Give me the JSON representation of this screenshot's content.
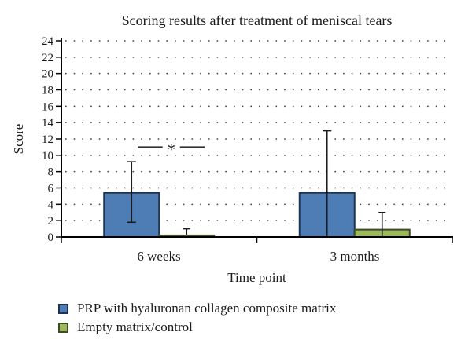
{
  "chart_data": {
    "type": "bar",
    "title": "Scoring results after treatment of meniscal tears",
    "xlabel": "Time point",
    "ylabel": "Score",
    "categories": [
      "6 weeks",
      "3 months"
    ],
    "series": [
      {
        "name": "PRP with hyaluronan collagen composite matrix",
        "color": "#4e7cb4",
        "border_color": "#1f3450",
        "values": [
          5.4,
          5.4
        ],
        "error_high": [
          9.2,
          13.0
        ],
        "error_low": [
          1.8,
          0
        ],
        "error_low_cap": [
          true,
          false
        ]
      },
      {
        "name": "Empty matrix/control",
        "color": "#9cba5c",
        "border_color": "#3f4a26",
        "values": [
          0.2,
          0.9
        ],
        "error_high": [
          1.0,
          3.0
        ],
        "error_low": [
          0.2,
          0
        ],
        "error_low_cap": [
          false,
          false
        ]
      }
    ],
    "ylim": [
      0,
      24
    ],
    "y_tick_step": 2,
    "grid": "dotted-horizontal",
    "legend_position": "bottom-left",
    "significance": {
      "label": "*",
      "category": "6 weeks",
      "y": 11
    },
    "colors": {
      "axis": "#000000",
      "grid_dots": "#404040",
      "error_bar": "#1c1c1c",
      "text": "#1a1a1a"
    }
  }
}
